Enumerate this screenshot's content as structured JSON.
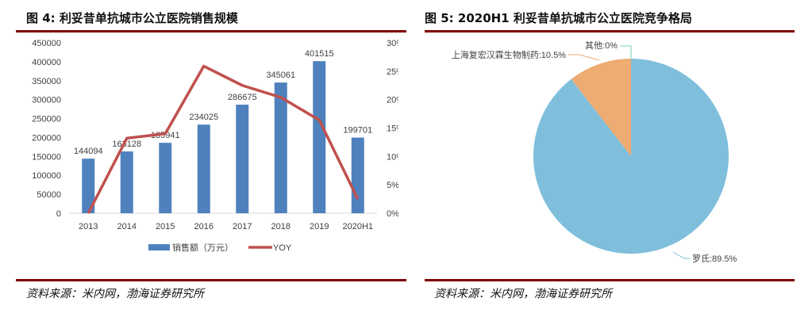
{
  "left_panel": {
    "title": "图 4:  利妥昔单抗城市公立医院销售规模",
    "source": "资料来源：米内网，渤海证券研究所"
  },
  "right_panel": {
    "title": "图 5:  2020H1 利妥昔单抗城市公立医院竞争格局",
    "source": "资料来源：米内网，渤海证券研究所"
  },
  "chart_data": [
    {
      "type": "bar+line",
      "categories": [
        "2013",
        "2014",
        "2015",
        "2016",
        "2017",
        "2018",
        "2019",
        "2020H1"
      ],
      "series": [
        {
          "name": "销售额（万元）",
          "type": "bar",
          "axis": "left",
          "color": "#4f81bd",
          "values": [
            144094,
            163128,
            185941,
            234025,
            286675,
            345061,
            401515,
            199701
          ],
          "data_labels": [
            "144094",
            "163128",
            "185941",
            "234025",
            "286675",
            "345061",
            "401515",
            "199701"
          ]
        },
        {
          "name": "YOY",
          "type": "line",
          "axis": "right",
          "color": "#c0504d",
          "values": [
            0,
            13.2,
            14.0,
            25.9,
            22.5,
            20.4,
            16.4,
            2.5
          ]
        }
      ],
      "y_left": {
        "ylim": [
          0,
          450000
        ],
        "ticks": [
          "0",
          "50000",
          "100000",
          "150000",
          "200000",
          "250000",
          "300000",
          "350000",
          "400000",
          "450000"
        ]
      },
      "y_right": {
        "ylim": [
          0,
          30
        ],
        "ticks": [
          "0%",
          "5%",
          "10%",
          "15%",
          "20%",
          "25%",
          "30%"
        ]
      },
      "grid": false,
      "legend": "bottom"
    },
    {
      "type": "pie",
      "slices": [
        {
          "label": "罗氏:89.5%",
          "name": "罗氏",
          "value": 89.5,
          "color": "#7fbfdc"
        },
        {
          "label": "上海复宏汉霖生物制药:10.5%",
          "name": "上海复宏汉霖生物制药",
          "value": 10.5,
          "color": "#eeab72"
        },
        {
          "label": "其他:0%",
          "name": "其他",
          "value": 0,
          "color": "#6fd0b0"
        }
      ]
    }
  ]
}
